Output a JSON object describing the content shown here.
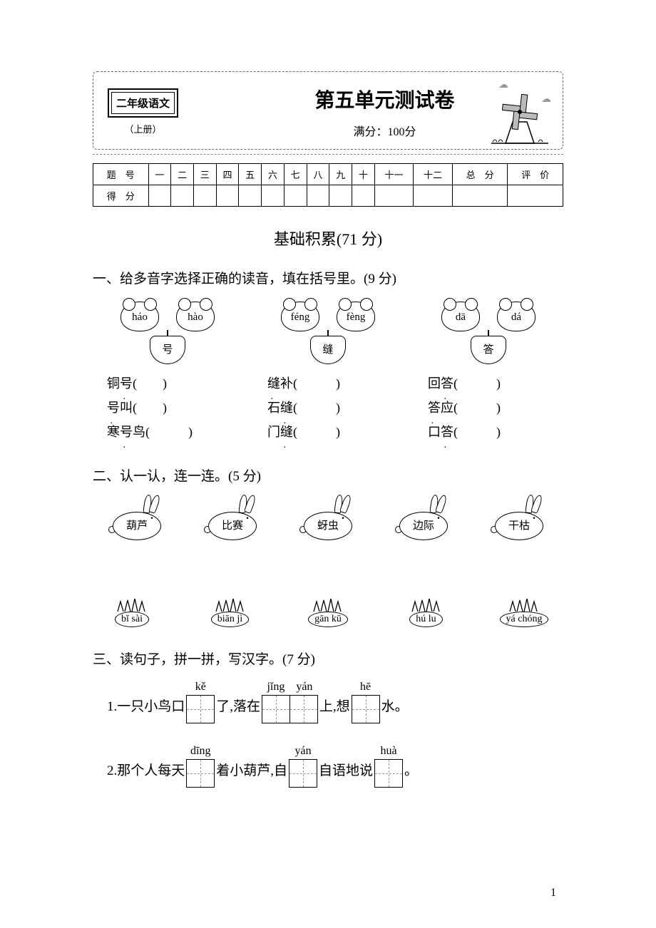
{
  "header": {
    "book_level": "二年级语文",
    "book_volume": "（上册）",
    "title": "第五单元测试卷",
    "fullscore": "满分：100分"
  },
  "score_table": {
    "row1": [
      "题　号",
      "一",
      "二",
      "三",
      "四",
      "五",
      "六",
      "七",
      "八",
      "九",
      "十",
      "十一",
      "十二",
      "总　分",
      "评　价"
    ],
    "row2_label": "得　分"
  },
  "section_head": "基础积累(71 分)",
  "q1": {
    "title": "一、给多音字选择正确的读音，填在括号里。(9 分)",
    "groups": [
      {
        "left": "háo",
        "right": "hào",
        "char": "号",
        "words": [
          {
            "pre": "铜",
            "d": "号",
            "suf": "(　　)"
          },
          {
            "pre": "",
            "d": "号",
            "suf": "叫(　　)"
          },
          {
            "pre": "寒",
            "d": "号",
            "suf": "鸟(　　　)"
          }
        ]
      },
      {
        "left": "féng",
        "right": "fèng",
        "char": "缝",
        "words": [
          {
            "pre": "",
            "d": "缝",
            "suf": "补(　　　)"
          },
          {
            "pre": "石",
            "d": "缝",
            "suf": "(　　　)"
          },
          {
            "pre": "门",
            "d": "缝",
            "suf": "(　　　)"
          }
        ]
      },
      {
        "left": "dā",
        "right": "dá",
        "char": "答",
        "words": [
          {
            "pre": "回",
            "d": "答",
            "suf": "(　　　)"
          },
          {
            "pre": "",
            "d": "答",
            "suf": "应(　　　)"
          },
          {
            "pre": "口",
            "d": "答",
            "suf": "(　　　)"
          }
        ]
      }
    ]
  },
  "q2": {
    "title": "二、认一认，连一连。(5 分)",
    "rabbits": [
      "葫芦",
      "比赛",
      "蚜虫",
      "边际",
      "干枯"
    ],
    "grass": [
      "bǐ sài",
      "biān jì",
      "gān kū",
      "hú lu",
      "yá chóng"
    ]
  },
  "q3": {
    "title": "三、读句子，拼一拼，写汉字。(7 分)",
    "lines": [
      {
        "num": "1.",
        "parts": [
          {
            "t": "一只小鸟口"
          },
          {
            "py": "kě",
            "boxes": 1
          },
          {
            "t": "了,落在"
          },
          {
            "py": "jǐng　yán",
            "boxes": 2
          },
          {
            "t": "上,想"
          },
          {
            "py": "hē",
            "boxes": 1
          },
          {
            "t": "水。"
          }
        ]
      },
      {
        "num": "2.",
        "parts": [
          {
            "t": "那个人每天"
          },
          {
            "py": "dīng",
            "boxes": 1
          },
          {
            "t": "着小葫芦,自"
          },
          {
            "py": "yán",
            "boxes": 1
          },
          {
            "t": "自语地说"
          },
          {
            "py": "huà",
            "boxes": 1
          },
          {
            "t": "。"
          }
        ]
      }
    ]
  },
  "pagenum": "1",
  "colors": {
    "text": "#000000",
    "bg": "#ffffff",
    "dash": "#888888"
  }
}
